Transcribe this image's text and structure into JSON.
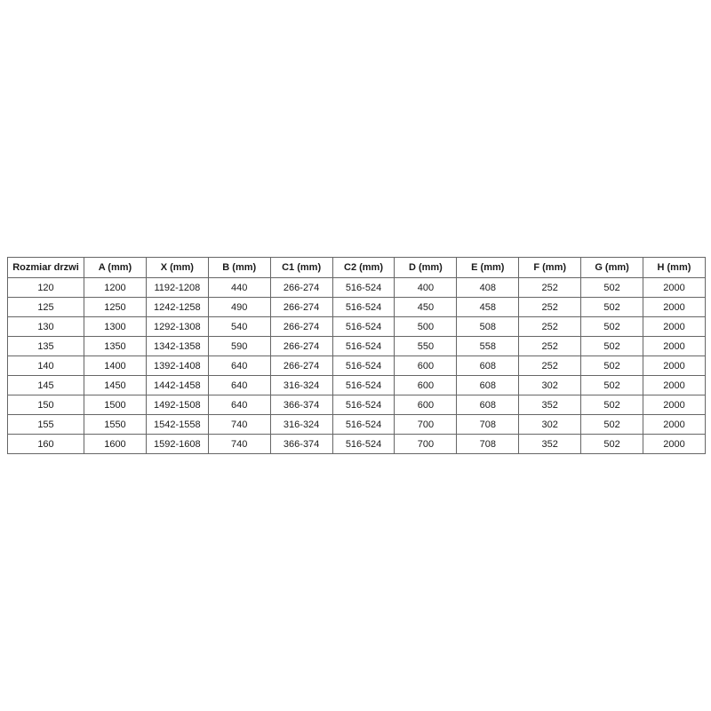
{
  "colors": {
    "background": "#ffffff",
    "border": "#666666",
    "text": "#1a1a1a"
  },
  "table": {
    "columns": [
      "Rozmiar drzwi",
      "A (mm)",
      "X (mm)",
      "B (mm)",
      "C1 (mm)",
      "C2 (mm)",
      "D (mm)",
      "E (mm)",
      "F (mm)",
      "G (mm)",
      "H (mm)"
    ],
    "rows": [
      [
        "120",
        "1200",
        "1192-1208",
        "440",
        "266-274",
        "516-524",
        "400",
        "408",
        "252",
        "502",
        "2000"
      ],
      [
        "125",
        "1250",
        "1242-1258",
        "490",
        "266-274",
        "516-524",
        "450",
        "458",
        "252",
        "502",
        "2000"
      ],
      [
        "130",
        "1300",
        "1292-1308",
        "540",
        "266-274",
        "516-524",
        "500",
        "508",
        "252",
        "502",
        "2000"
      ],
      [
        "135",
        "1350",
        "1342-1358",
        "590",
        "266-274",
        "516-524",
        "550",
        "558",
        "252",
        "502",
        "2000"
      ],
      [
        "140",
        "1400",
        "1392-1408",
        "640",
        "266-274",
        "516-524",
        "600",
        "608",
        "252",
        "502",
        "2000"
      ],
      [
        "145",
        "1450",
        "1442-1458",
        "640",
        "316-324",
        "516-524",
        "600",
        "608",
        "302",
        "502",
        "2000"
      ],
      [
        "150",
        "1500",
        "1492-1508",
        "640",
        "366-374",
        "516-524",
        "600",
        "608",
        "352",
        "502",
        "2000"
      ],
      [
        "155",
        "1550",
        "1542-1558",
        "740",
        "316-324",
        "516-524",
        "700",
        "708",
        "302",
        "502",
        "2000"
      ],
      [
        "160",
        "1600",
        "1592-1608",
        "740",
        "366-374",
        "516-524",
        "700",
        "708",
        "352",
        "502",
        "2000"
      ]
    ]
  }
}
